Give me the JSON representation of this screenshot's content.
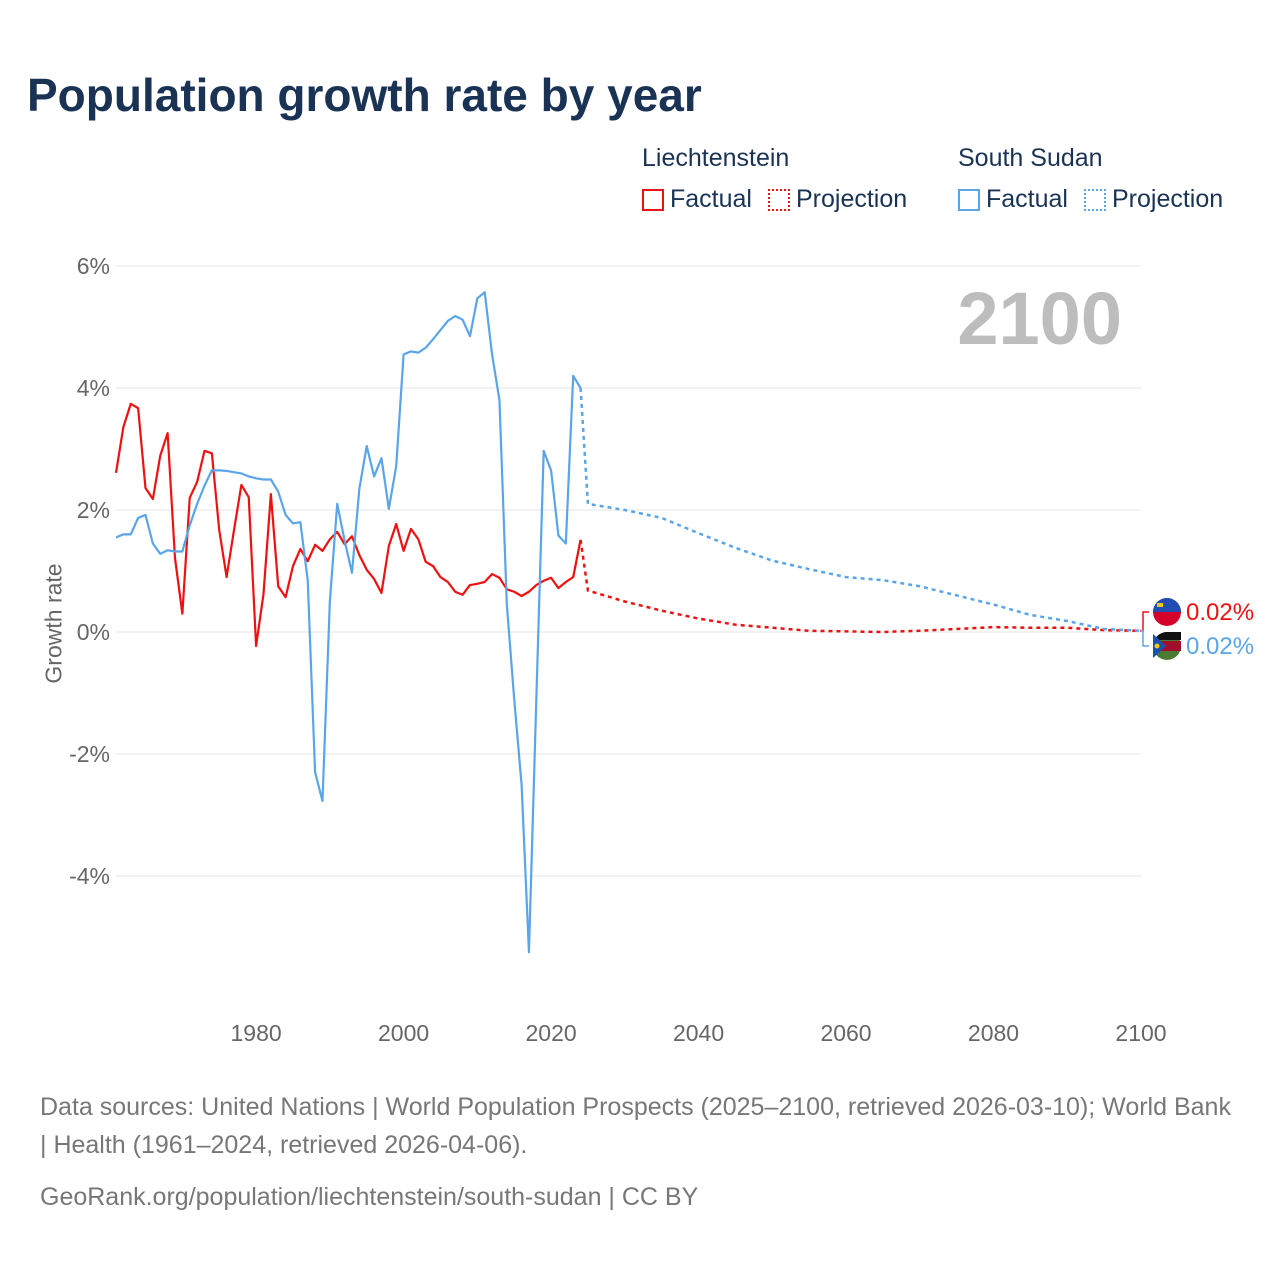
{
  "title": "Population growth rate by year",
  "big_year": "2100",
  "legend": [
    {
      "group": "Liechtenstein",
      "factual": "Factual",
      "projection": "Projection",
      "color": "#ee1111"
    },
    {
      "group": "South Sudan",
      "factual": "Factual",
      "projection": "Projection",
      "color": "#5aa5e8"
    }
  ],
  "footer": {
    "sources": "Data sources: United Nations | World Population Prospects (2025–2100, retrieved 2026-03-10); World Bank | Health (1961–2024, retrieved 2026-04-06).",
    "link": "GeoRank.org/population/liechtenstein/south-sudan | CC BY"
  },
  "chart_data": {
    "type": "line",
    "title": "Population growth rate by year",
    "xlabel": "",
    "ylabel": "Growth rate",
    "xlim": [
      1961,
      2100
    ],
    "ylim": [
      -5.5,
      6.3
    ],
    "x_ticks": [
      1980,
      2000,
      2020,
      2040,
      2060,
      2080,
      2100
    ],
    "y_ticks": [
      6,
      4,
      2,
      0,
      -2,
      -4
    ],
    "y_tick_labels": [
      "6%",
      "4%",
      "2%",
      "0%",
      "-2%",
      "-4%"
    ],
    "grid": true,
    "legend_placement": "top-right",
    "series": [
      {
        "name": "Liechtenstein",
        "color": "#ee1111",
        "end_label": "0.02%",
        "factual_start": 1961,
        "factual": [
          2.61,
          3.36,
          3.74,
          3.67,
          2.36,
          2.18,
          2.89,
          3.26,
          1.21,
          0.3,
          2.2,
          2.46,
          2.97,
          2.93,
          1.67,
          0.9,
          1.67,
          2.41,
          2.21,
          -0.23,
          0.62,
          2.26,
          0.75,
          0.57,
          1.08,
          1.36,
          1.16,
          1.43,
          1.33,
          1.52,
          1.64,
          1.44,
          1.57,
          1.26,
          1.02,
          0.87,
          0.64,
          1.41,
          1.77,
          1.33,
          1.69,
          1.52,
          1.15,
          1.08,
          0.9,
          0.82,
          0.66,
          0.61,
          0.77,
          0.79,
          0.82,
          0.95,
          0.89,
          0.7,
          0.66,
          0.59,
          0.66,
          0.77,
          0.84,
          0.89,
          0.72,
          0.82,
          0.9,
          1.51
        ],
        "projection_x": [
          2025,
          2030,
          2035,
          2040,
          2045,
          2050,
          2055,
          2060,
          2065,
          2070,
          2075,
          2080,
          2085,
          2090,
          2095,
          2100
        ],
        "projection": [
          0.68,
          0.5,
          0.35,
          0.22,
          0.12,
          0.07,
          0.02,
          0.01,
          0.0,
          0.02,
          0.05,
          0.08,
          0.07,
          0.07,
          0.03,
          0.02
        ]
      },
      {
        "name": "South Sudan",
        "color": "#5aa5e8",
        "end_label": "0.02%",
        "factual_start": 1961,
        "factual": [
          1.55,
          1.6,
          1.6,
          1.87,
          1.92,
          1.45,
          1.28,
          1.34,
          1.32,
          1.32,
          1.75,
          2.1,
          2.4,
          2.65,
          2.65,
          2.64,
          2.62,
          2.6,
          2.55,
          2.52,
          2.5,
          2.5,
          2.3,
          1.92,
          1.78,
          1.8,
          0.85,
          -2.3,
          -2.77,
          0.5,
          2.1,
          1.5,
          0.97,
          2.35,
          3.05,
          2.55,
          2.85,
          2.02,
          2.72,
          4.55,
          4.6,
          4.58,
          4.66,
          4.8,
          4.95,
          5.1,
          5.18,
          5.12,
          4.85,
          5.47,
          5.57,
          4.55,
          3.8,
          0.45,
          -1.1,
          -2.5,
          -5.25,
          -1.1,
          2.97,
          2.65,
          1.58,
          1.45,
          4.2,
          4.0
        ],
        "projection_x": [
          2025,
          2030,
          2035,
          2040,
          2045,
          2050,
          2055,
          2060,
          2065,
          2070,
          2075,
          2080,
          2085,
          2090,
          2095,
          2100
        ],
        "projection": [
          2.1,
          2.0,
          1.87,
          1.62,
          1.38,
          1.17,
          1.03,
          0.9,
          0.85,
          0.75,
          0.6,
          0.45,
          0.28,
          0.18,
          0.05,
          0.02
        ]
      }
    ]
  }
}
